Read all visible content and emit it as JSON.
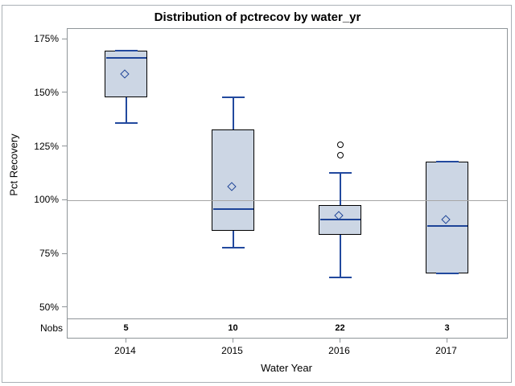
{
  "chart_data": {
    "type": "box",
    "title": "Distribution of pctrecov by water_yr",
    "xlabel": "Water Year",
    "ylabel": "Pct Recovery",
    "y_ticks": [
      175,
      150,
      125,
      100,
      75,
      50
    ],
    "y_tick_labels": [
      "175%",
      "150%",
      "125%",
      "100%",
      "75%",
      "50%"
    ],
    "ylim": [
      50,
      175
    ],
    "reference_line": 100,
    "grid": "off",
    "legend": "none",
    "nobs_label": "Nobs",
    "categories": [
      "2014",
      "2015",
      "2016",
      "2017"
    ],
    "nobs": [
      5,
      10,
      22,
      3
    ],
    "boxes": [
      {
        "category": "2014",
        "n": 5,
        "whisker_low": 136,
        "q1": 148,
        "median": 166.5,
        "q3": 170,
        "whisker_high": 170,
        "mean": 158.5,
        "outliers": []
      },
      {
        "category": "2015",
        "n": 10,
        "whisker_low": 78,
        "q1": 86,
        "median": 96,
        "q3": 133,
        "whisker_high": 148,
        "mean": 106,
        "outliers": []
      },
      {
        "category": "2016",
        "n": 22,
        "whisker_low": 64,
        "q1": 84,
        "median": 91,
        "q3": 98,
        "whisker_high": 113,
        "mean": 92.5,
        "outliers": [
          126,
          121
        ]
      },
      {
        "category": "2017",
        "n": 3,
        "whisker_low": 66,
        "q1": 66,
        "median": 88,
        "q3": 118,
        "whisker_high": 118,
        "mean": 90.5,
        "outliers": []
      }
    ],
    "colors": {
      "box_fill": "#ccd6e4",
      "box_border": "#000000",
      "whisker": "#22499e",
      "median": "#1e4498",
      "mean_marker": "#1e4498",
      "outlier": "#000000",
      "reference_line": "#a6a6a6",
      "axis": "#8f9599",
      "text": "#000000"
    }
  }
}
